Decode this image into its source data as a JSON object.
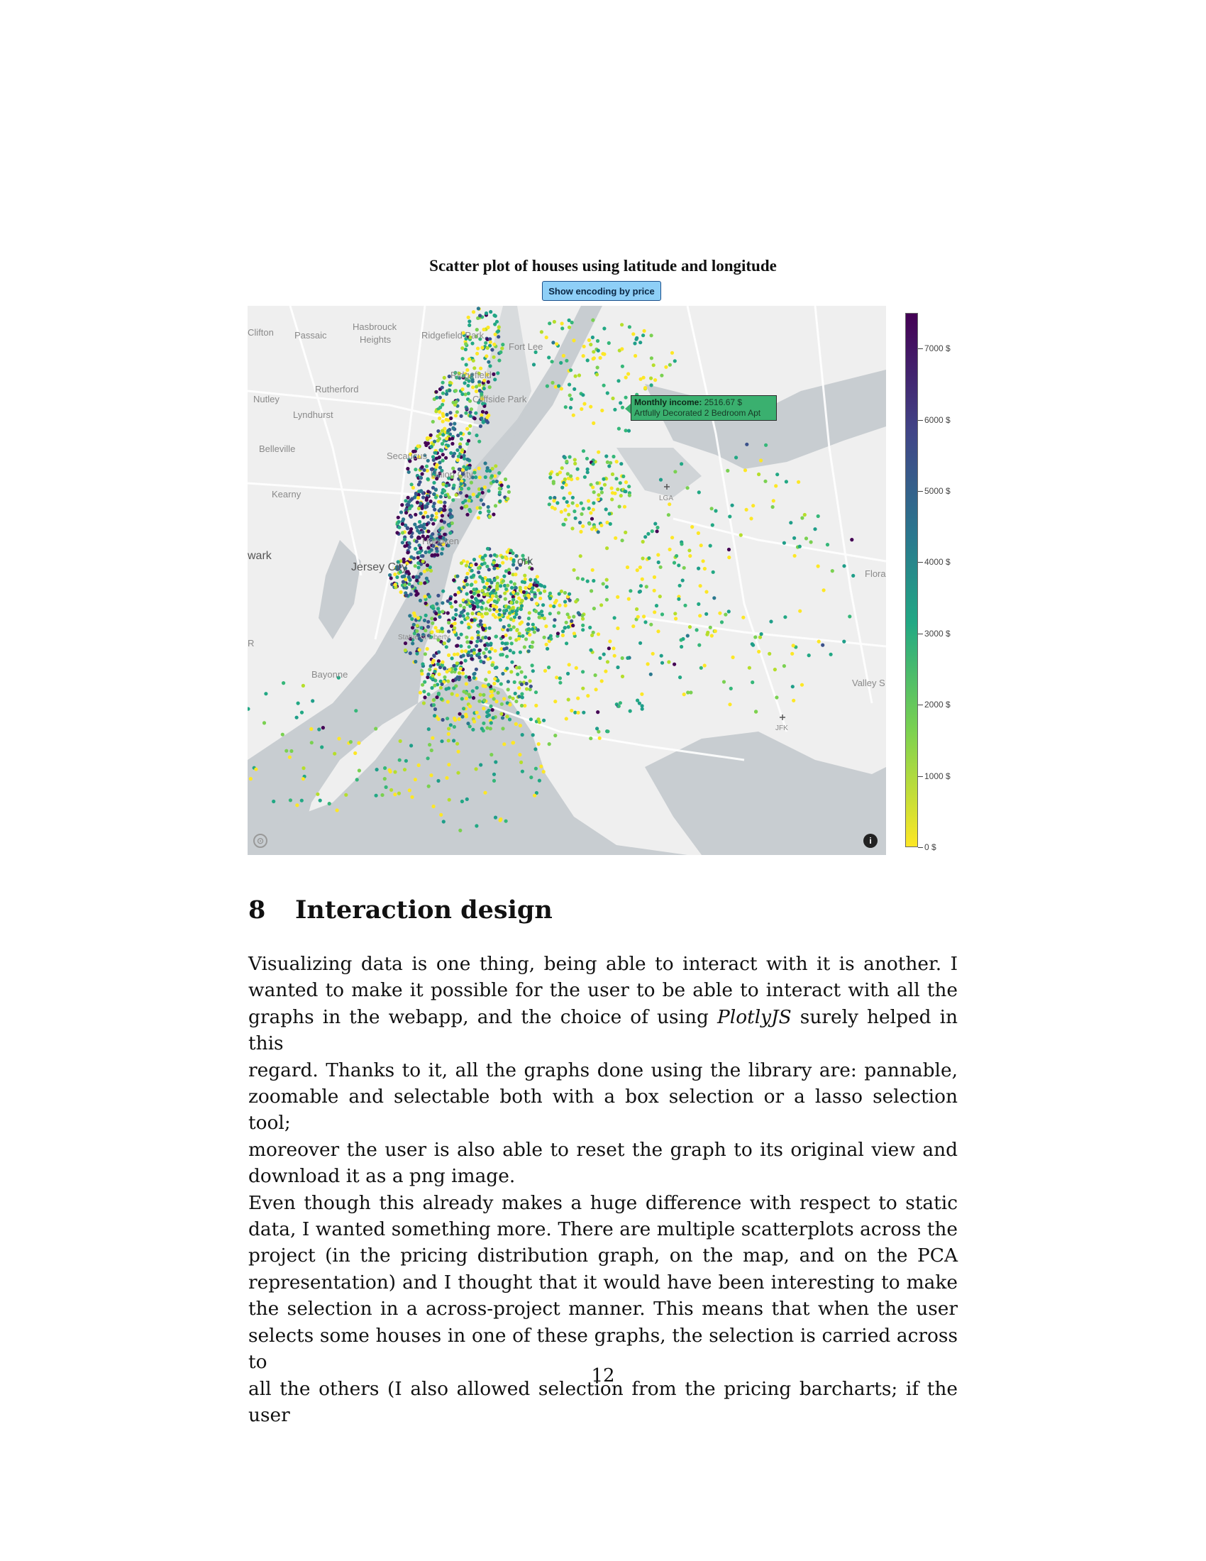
{
  "figure": {
    "title": "Scatter plot of houses using latitude and longitude",
    "encoding_button": "Show encoding by price",
    "tooltip": {
      "label": "Monthly income",
      "value": "2516.67 $",
      "listing": "Artfully Decorated 2 Bedroom Apt"
    },
    "map_labels": [
      "Clifton",
      "Passaic",
      "Hasbrouck",
      "Heights",
      "Ridgefield Park",
      "Fort Lee",
      "Ridgefield",
      "Rutherford",
      "Nutley",
      "Cliffside Park",
      "Lyndhurst",
      "Belleville",
      "Secaucus",
      "Union City",
      "Kearny",
      "Hoboken",
      "wark",
      "Jersey City",
      "Statue of Liberty",
      "R",
      "Bayonne",
      "LGA",
      "JFK",
      "Flora",
      "Valley S",
      "ork"
    ],
    "icons": [
      "mapbox-logo-icon",
      "info-icon",
      "airport-icon"
    ]
  },
  "chart_data": {
    "type": "scatter",
    "title": "Scatter plot of houses using latitude and longitude",
    "colorscale": "viridis reversed",
    "colorbar": {
      "ticks": [
        "7000 $",
        "6000 $",
        "5000 $",
        "4000 $",
        "3000 $",
        "2000 $",
        "1000 $",
        "0 $"
      ],
      "range": [
        0,
        7500
      ]
    },
    "colors": {
      "low": "#fde725",
      "mid": "#22a884",
      "high": "#440154"
    },
    "highlighted_point": {
      "monthly_income": 2516.67,
      "listing": "Artfully Decorated 2 Bedroom Apt"
    }
  },
  "section": {
    "number": "8",
    "title": "Interaction design"
  },
  "paragraphs": [
    [
      "Visualizing data is one thing, being able to interact with it is another. I",
      "wanted to make it possible for the user to be able to interact with all the",
      "graphs in the webapp, and the choice of using |PlotlyJS| surely helped in this",
      "regard. Thanks to it, all the graphs done using the library are: pannable,",
      "zoomable and selectable both with a box selection or a lasso selection tool;",
      "moreover the user is also able to reset the graph to its original view and",
      "download it as a png image."
    ],
    [
      "Even though this already makes a huge difference with respect to static",
      "data, I wanted something more. There are multiple scatterplots across the",
      "project (in the pricing distribution graph, on the map, and on the PCA",
      "representation) and I thought that it would have been interesting to make",
      "the selection in a across-project manner. This means that when the user",
      "selects some houses in one of these graphs, the selection is carried across to",
      "all the others (I also allowed selection from the pricing barcharts; if the user"
    ]
  ],
  "page_number": "12"
}
